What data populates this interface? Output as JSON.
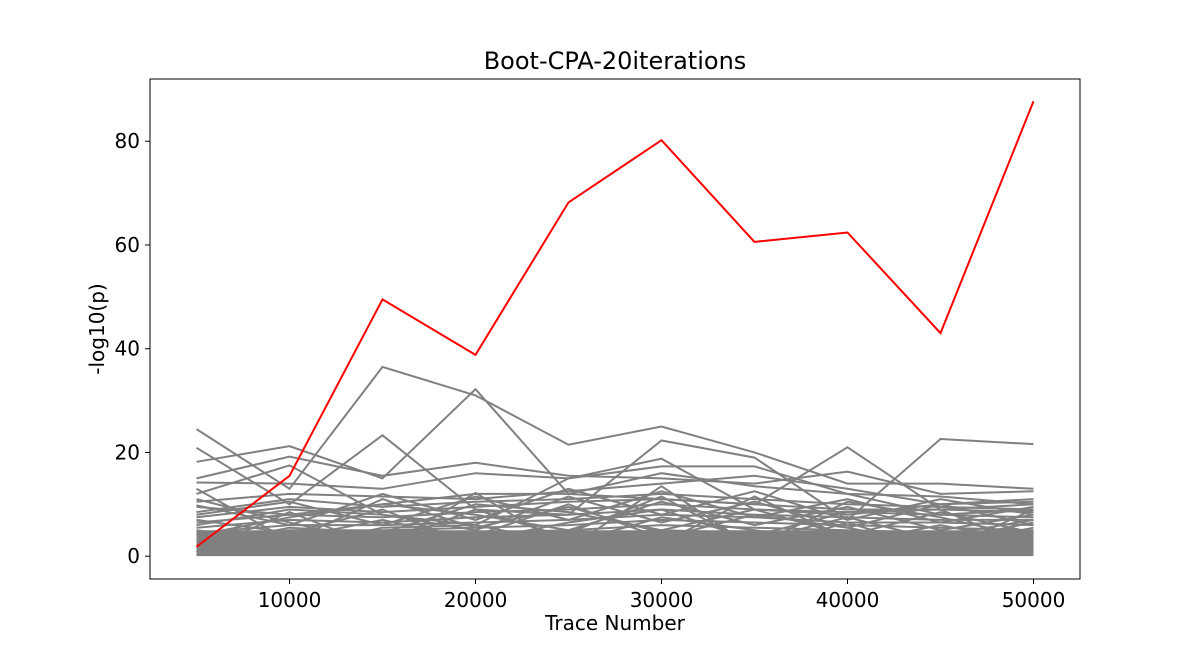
{
  "chart_data": {
    "type": "line",
    "title": "Boot-CPA-20iterations",
    "xlabel": "Trace Number",
    "ylabel": "-log10(p)",
    "xlim": [
      2500,
      52500
    ],
    "ylim": [
      -4.4,
      92
    ],
    "xticks": [
      10000,
      20000,
      30000,
      40000,
      50000
    ],
    "yticks": [
      0,
      20,
      40,
      60,
      80
    ],
    "x": [
      5000,
      10000,
      15000,
      20000,
      25000,
      30000,
      35000,
      40000,
      45000,
      50000
    ],
    "highlight": {
      "color": "#ff0000",
      "values": [
        1.8,
        15.5,
        49.5,
        38.8,
        68.2,
        80.2,
        60.6,
        62.4,
        43.0,
        87.7
      ]
    },
    "background": {
      "color": "#808080",
      "series": [
        [
          24.5,
          13.0,
          36.5,
          31.0,
          21.5,
          25.0,
          20.0,
          14.0,
          14.0,
          13.0
        ],
        [
          20.9,
          10.0,
          23.3,
          9.0,
          8.0,
          22.3,
          19.0,
          7.0,
          22.6,
          21.6
        ],
        [
          18.2,
          21.2,
          15.0,
          32.2,
          12.0,
          11.0,
          10.0,
          21.0,
          9.0,
          10.0
        ],
        [
          15.0,
          19.2,
          15.5,
          18.0,
          15.5,
          15.0,
          14.0,
          16.3,
          12.0,
          12.5
        ],
        [
          12.0,
          17.5,
          8.0,
          6.0,
          15.0,
          18.8,
          9.0,
          8.0,
          10.0,
          11.0
        ],
        [
          14.2,
          14.0,
          13.0,
          16.0,
          15.0,
          17.3,
          17.3,
          12.0,
          8.0,
          9.0
        ],
        [
          10.5,
          12.0,
          11.5,
          11.0,
          12.5,
          14.0,
          15.5,
          13.0,
          10.0,
          10.5
        ],
        [
          9.5,
          8.0,
          10.0,
          12.0,
          12.0,
          16.0,
          13.5,
          12.0,
          11.5,
          10.0
        ],
        [
          8.5,
          11.0,
          9.5,
          10.5,
          11.0,
          12.0,
          11.0,
          10.0,
          9.5,
          9.0
        ],
        [
          7.5,
          9.5,
          8.5,
          9.5,
          10.5,
          11.0,
          10.0,
          9.0,
          9.0,
          8.5
        ],
        [
          6.5,
          8.0,
          7.5,
          8.5,
          9.0,
          10.0,
          9.0,
          8.5,
          8.0,
          7.5
        ],
        [
          5.5,
          7.0,
          6.5,
          7.5,
          8.0,
          9.0,
          8.0,
          7.5,
          7.0,
          7.0
        ],
        [
          4.5,
          6.0,
          6.0,
          6.5,
          7.0,
          8.0,
          7.5,
          6.5,
          6.5,
          6.0
        ],
        [
          3.5,
          5.0,
          5.0,
          5.5,
          6.0,
          7.0,
          6.5,
          6.0,
          5.5,
          5.0
        ],
        [
          2.5,
          4.0,
          4.0,
          4.5,
          5.0,
          6.0,
          5.5,
          5.0,
          4.5,
          4.0
        ],
        [
          1.5,
          3.0,
          3.0,
          3.5,
          4.0,
          5.0,
          4.5,
          4.0,
          3.5,
          3.0
        ],
        [
          0.5,
          2.0,
          2.0,
          2.5,
          3.0,
          4.0,
          3.5,
          3.0,
          2.5,
          2.0
        ],
        [
          0.2,
          1.0,
          1.0,
          1.5,
          2.0,
          3.0,
          2.5,
          2.0,
          1.5,
          1.0
        ],
        [
          9.8,
          6.0,
          12.0,
          7.0,
          13.0,
          8.0,
          12.5,
          7.0,
          11.0,
          8.0
        ],
        [
          8.0,
          10.5,
          6.0,
          11.5,
          7.0,
          12.5,
          7.5,
          11.0,
          6.5,
          9.5
        ],
        [
          6.0,
          9.0,
          8.0,
          5.0,
          11.5,
          6.5,
          10.5,
          5.5,
          10.0,
          6.0
        ],
        [
          4.0,
          7.5,
          10.0,
          8.0,
          5.0,
          10.5,
          6.0,
          9.5,
          5.0,
          8.0
        ],
        [
          2.0,
          5.5,
          4.5,
          10.0,
          8.5,
          5.0,
          9.0,
          4.0,
          8.5,
          4.5
        ],
        [
          1.0,
          3.5,
          7.0,
          3.0,
          6.5,
          9.0,
          3.0,
          7.5,
          3.0,
          6.5
        ],
        [
          3.0,
          1.5,
          5.5,
          6.0,
          2.5,
          7.5,
          5.0,
          2.5,
          6.0,
          2.5
        ],
        [
          5.0,
          2.5,
          3.0,
          4.0,
          10.0,
          3.5,
          8.0,
          5.5,
          2.0,
          5.5
        ],
        [
          7.0,
          4.5,
          9.0,
          2.0,
          4.5,
          11.5,
          2.0,
          10.5,
          7.5,
          3.5
        ],
        [
          11.0,
          6.5,
          2.5,
          9.0,
          3.5,
          2.5,
          11.5,
          3.5,
          4.0,
          7.0
        ],
        [
          13.0,
          3.0,
          11.0,
          5.5,
          9.5,
          4.5,
          4.0,
          8.5,
          9.0,
          1.5
        ],
        [
          0.8,
          8.5,
          1.5,
          12.2,
          1.5,
          13.5,
          1.5,
          6.5,
          1.0,
          9.0
        ]
      ]
    }
  }
}
